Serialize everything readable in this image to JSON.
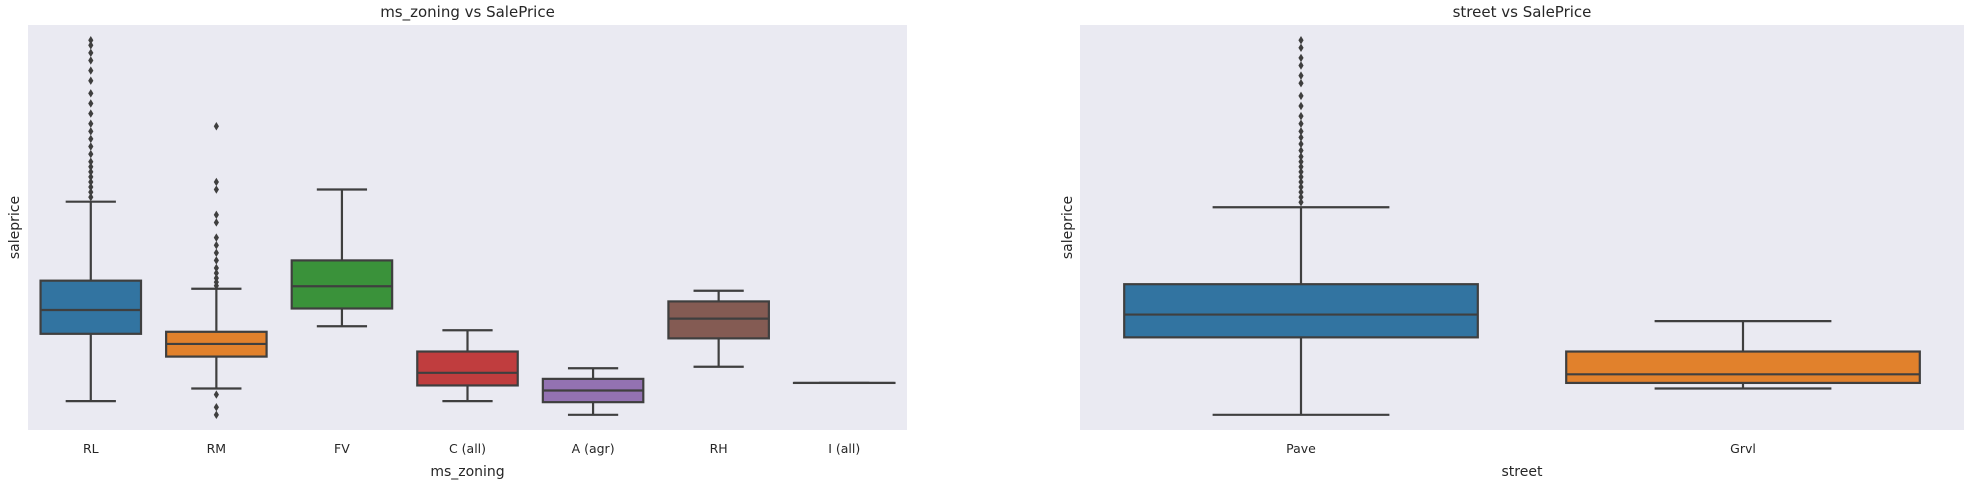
{
  "chart_data": [
    {
      "type": "box",
      "title": "ms_zoning vs SalePrice",
      "xlabel": "ms_zoning",
      "ylabel": "saleprice",
      "ylim": [
        0,
        800000
      ],
      "grid": false,
      "categories": [
        "RL",
        "RM",
        "FV",
        "C (all)",
        "A (agr)",
        "RH",
        "I (all)"
      ],
      "colors": [
        "#3274a1",
        "#e1812c",
        "#3a923a",
        "#c03d3e",
        "#9372b2",
        "#845b53",
        "#d684bd"
      ],
      "boxes": [
        {
          "category": "RL",
          "whislo": 57000,
          "q1": 190000,
          "med": 237000,
          "q3": 295000,
          "whishi": 451000,
          "fliers": [
            460000,
            470000,
            480000,
            490000,
            500000,
            510000,
            520000,
            530000,
            545000,
            560000,
            575000,
            590000,
            605000,
            625000,
            645000,
            665000,
            690000,
            710000,
            730000,
            745000,
            760000,
            770000
          ]
        },
        {
          "category": "RM",
          "whislo": 82000,
          "q1": 145000,
          "med": 170000,
          "q3": 194000,
          "whishi": 279000,
          "fliers": [
            30000,
            45000,
            70000,
            285000,
            292000,
            300000,
            310000,
            320000,
            335000,
            350000,
            365000,
            380000,
            410000,
            425000,
            475000,
            490000,
            600000
          ]
        },
        {
          "category": "FV",
          "whislo": 205000,
          "q1": 240000,
          "med": 284000,
          "q3": 335000,
          "whishi": 475000,
          "fliers": []
        },
        {
          "category": "C (all)",
          "whislo": 57000,
          "q1": 88000,
          "med": 113000,
          "q3": 155000,
          "whishi": 197000,
          "fliers": []
        },
        {
          "category": "A (agr)",
          "whislo": 30000,
          "q1": 55000,
          "med": 78000,
          "q3": 101000,
          "whishi": 122000,
          "fliers": []
        },
        {
          "category": "RH",
          "whislo": 125000,
          "q1": 181000,
          "med": 220000,
          "q3": 254000,
          "whishi": 275000,
          "fliers": []
        },
        {
          "category": "I (all)",
          "whislo": 93000,
          "q1": 93000,
          "med": 93000,
          "q3": 93000,
          "whishi": 93000,
          "fliers": []
        }
      ]
    },
    {
      "type": "box",
      "title": "street vs SalePrice",
      "xlabel": "street",
      "ylabel": "saleprice",
      "ylim": [
        0,
        800000
      ],
      "grid": false,
      "categories": [
        "Pave",
        "Grvl"
      ],
      "colors": [
        "#3274a1",
        "#e1812c"
      ],
      "boxes": [
        {
          "category": "Pave",
          "whislo": 30000,
          "q1": 183000,
          "med": 228000,
          "q3": 288000,
          "whishi": 440000,
          "fliers": [
            450000,
            460000,
            470000,
            480000,
            490000,
            500000,
            510000,
            520000,
            530000,
            540000,
            552000,
            565000,
            578000,
            590000,
            605000,
            620000,
            640000,
            660000,
            685000,
            700000,
            720000,
            735000,
            755000,
            770000
          ]
        },
        {
          "category": "Grvl",
          "whislo": 82000,
          "q1": 93000,
          "med": 110000,
          "q3": 155000,
          "whishi": 215000,
          "fliers": []
        }
      ]
    }
  ]
}
